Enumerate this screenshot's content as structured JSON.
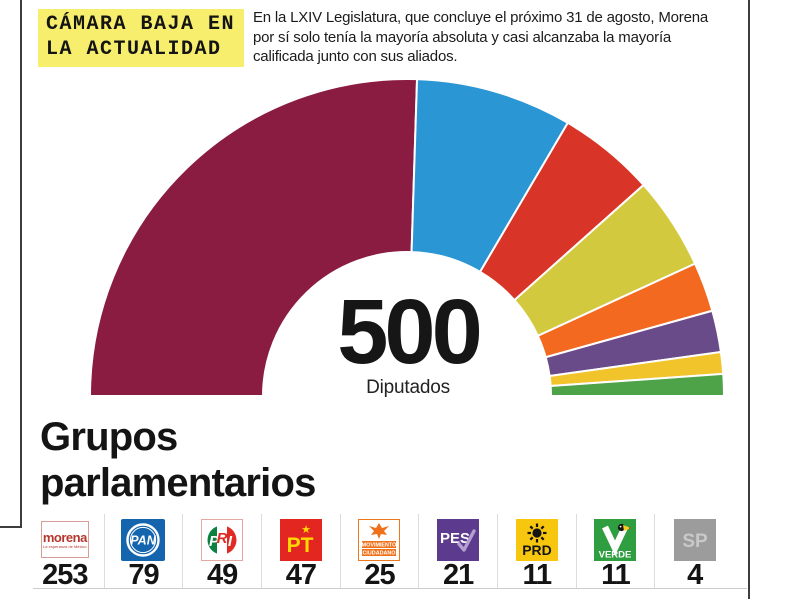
{
  "header": {
    "title_line1": "CÁMARA BAJA EN",
    "title_line2": "LA ACTUALIDAD",
    "title_highlight_color": "#f7ee6d",
    "description": "En la LXIV Legislatura, que concluye el próximo 31 de agosto, Morena por sí solo tenía la mayoría absoluta y casi alcanzaba la mayoría calificada junto con sus aliados."
  },
  "chart": {
    "total_number": "500",
    "total_sublabel": "Diputados"
  },
  "section": {
    "heading": "Grupos parlamentarios"
  },
  "parties": [
    {
      "id": "morena",
      "name": "Morena",
      "label": "morena",
      "tagline": "La esperanza de México",
      "seats": 253,
      "arc_color": "#8a1b41",
      "in_arc": true
    },
    {
      "id": "pan",
      "name": "PAN",
      "label": "PAN",
      "seats": 79,
      "arc_color": "#2b96d4",
      "in_arc": true
    },
    {
      "id": "pri",
      "name": "PRI",
      "letters": [
        "P",
        "R",
        "I"
      ],
      "seats": 49,
      "arc_color": "#d93428",
      "in_arc": true
    },
    {
      "id": "pt",
      "name": "PT",
      "label": "PT",
      "star": "★",
      "seats": 47,
      "arc_color": "#d3c93e",
      "in_arc": true
    },
    {
      "id": "mc",
      "name": "Movimiento Ciudadano",
      "label_line1": "MOVIMIENTO",
      "label_line2": "CIUDADANO",
      "seats": 25,
      "arc_color": "#f2691f",
      "in_arc": true
    },
    {
      "id": "pes",
      "name": "PES",
      "label": "PES",
      "seats": 21,
      "arc_color": "#6a4b8a",
      "in_arc": true
    },
    {
      "id": "prd",
      "name": "PRD",
      "label": "PRD",
      "seats": 11,
      "arc_color": "#f2c42c",
      "in_arc": true
    },
    {
      "id": "verde",
      "name": "VERDE",
      "label": "VERDE",
      "seats": 11,
      "arc_color": "#4ea348",
      "in_arc": true
    },
    {
      "id": "sp",
      "name": "SP",
      "label": "SP",
      "seats": 4,
      "arc_color": "#9c9c9c",
      "in_arc": false
    }
  ],
  "chart_data": {
    "type": "pie",
    "variant": "semicircle-donut (parliament seats)",
    "title": "Cámara baja en la actualidad",
    "center_label": "500 Diputados",
    "total": 500,
    "categories": [
      "Morena",
      "PAN",
      "PRI",
      "PT",
      "Movimiento Ciudadano",
      "PES",
      "PRD",
      "Verde",
      "SP (sin partido)"
    ],
    "values": [
      253,
      79,
      49,
      47,
      25,
      21,
      11,
      11,
      4
    ],
    "colors": [
      "#8a1b41",
      "#2b96d4",
      "#d93428",
      "#d3c93e",
      "#f2691f",
      "#6a4b8a",
      "#f2c42c",
      "#4ea348",
      "#9c9c9c"
    ],
    "notes": "Semicircle spans 180° left-to-right; SP (4 seats) not visibly drawn in the arc.",
    "legend_position": "bottom row of party logos with seat counts"
  }
}
